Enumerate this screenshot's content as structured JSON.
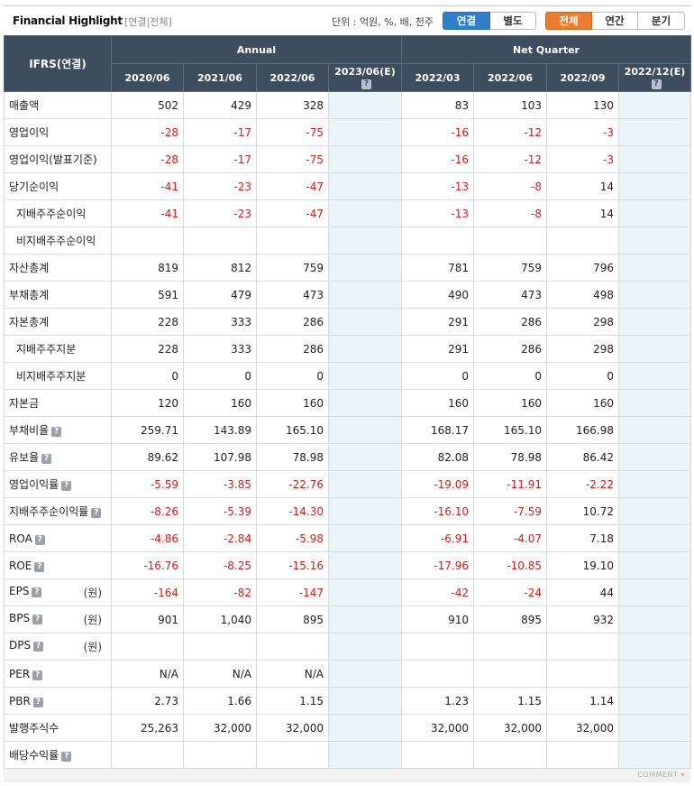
{
  "header": {
    "title": "Financial Highlight",
    "subtitle": "[연결|전체]",
    "unit_text": "단위 : 억원, %, 배, 천주",
    "consolidation_toggle": [
      {
        "label": "연결",
        "active": true
      },
      {
        "label": "별도",
        "active": false
      }
    ],
    "period_toggle": [
      {
        "label": "전체",
        "active": true
      },
      {
        "label": "연간",
        "active": false
      },
      {
        "label": "분기",
        "active": false
      }
    ]
  },
  "table": {
    "corner_label": "IFRS(연결)",
    "group_headers": [
      "Annual",
      "Net Quarter"
    ],
    "columns": [
      "2020/06",
      "2021/06",
      "2022/06",
      "2023/06(E)",
      "2022/03",
      "2022/06",
      "2022/09",
      "2022/12(E)"
    ],
    "rows": [
      {
        "label": "매출액",
        "values": [
          "502",
          "429",
          "328",
          "",
          "83",
          "103",
          "130",
          ""
        ]
      },
      {
        "label": "영업이익",
        "values": [
          "-28",
          "-17",
          "-75",
          "",
          "-16",
          "-12",
          "-3",
          ""
        ]
      },
      {
        "label": "영업이익(발표기준)",
        "values": [
          "-28",
          "-17",
          "-75",
          "",
          "-16",
          "-12",
          "-3",
          ""
        ]
      },
      {
        "label": "당기순이익",
        "values": [
          "-41",
          "-23",
          "-47",
          "",
          "-13",
          "-8",
          "14",
          ""
        ]
      },
      {
        "label": "지배주주순이익",
        "values": [
          "-41",
          "-23",
          "-47",
          "",
          "-13",
          "-8",
          "14",
          ""
        ]
      },
      {
        "label": "비지배주주순이익",
        "values": [
          "",
          "",
          "",
          "",
          "",
          "",
          "",
          ""
        ]
      },
      {
        "label": "자산총계",
        "values": [
          "819",
          "812",
          "759",
          "",
          "781",
          "759",
          "796",
          ""
        ]
      },
      {
        "label": "부채총계",
        "values": [
          "591",
          "479",
          "473",
          "",
          "490",
          "473",
          "498",
          ""
        ]
      },
      {
        "label": "자본총계",
        "values": [
          "228",
          "333",
          "286",
          "",
          "291",
          "286",
          "298",
          ""
        ]
      },
      {
        "label": "지배주주지분",
        "values": [
          "228",
          "333",
          "286",
          "",
          "291",
          "286",
          "298",
          ""
        ]
      },
      {
        "label": "비지배주주지분",
        "values": [
          "0",
          "0",
          "0",
          "",
          "0",
          "0",
          "0",
          ""
        ]
      },
      {
        "label": "자본금",
        "values": [
          "120",
          "160",
          "160",
          "",
          "160",
          "160",
          "160",
          ""
        ]
      },
      {
        "label": "부채비율",
        "values": [
          "259.71",
          "143.89",
          "165.10",
          "",
          "168.17",
          "165.10",
          "166.98",
          ""
        ]
      },
      {
        "label": "유보율",
        "values": [
          "89.62",
          "107.98",
          "78.98",
          "",
          "82.08",
          "78.98",
          "86.42",
          ""
        ]
      },
      {
        "label": "영업이익률",
        "values": [
          "-5.59",
          "-3.85",
          "-22.76",
          "",
          "-19.09",
          "-11.91",
          "-2.22",
          ""
        ]
      },
      {
        "label": "지배주주순이익률",
        "values": [
          "-8.26",
          "-5.39",
          "-14.30",
          "",
          "-16.10",
          "-7.59",
          "10.72",
          ""
        ]
      },
      {
        "label": "ROA",
        "values": [
          "-4.86",
          "-2.84",
          "-5.98",
          "",
          "-6.91",
          "-4.07",
          "7.18",
          ""
        ]
      },
      {
        "label": "ROE",
        "values": [
          "-16.76",
          "-8.25",
          "-15.16",
          "",
          "-17.96",
          "-10.85",
          "19.10",
          ""
        ]
      },
      {
        "label": "EPS",
        "unit": "(원)",
        "values": [
          "-164",
          "-82",
          "-147",
          "",
          "-42",
          "-24",
          "44",
          ""
        ]
      },
      {
        "label": "BPS",
        "unit": "(원)",
        "values": [
          "901",
          "1,040",
          "895",
          "",
          "910",
          "895",
          "932",
          ""
        ]
      },
      {
        "label": "DPS",
        "unit": "(원)",
        "values": [
          "",
          "",
          "",
          "",
          "",
          "",
          "",
          ""
        ]
      },
      {
        "label": "PER",
        "values": [
          "N/A",
          "N/A",
          "N/A",
          "",
          "",
          "",
          "",
          ""
        ]
      },
      {
        "label": "PBR",
        "values": [
          "2.73",
          "1.66",
          "1.15",
          "",
          "1.23",
          "1.15",
          "1.14",
          ""
        ]
      },
      {
        "label": "발행주식수",
        "values": [
          "25,263",
          "32,000",
          "32,000",
          "",
          "32,000",
          "32,000",
          "32,000",
          ""
        ]
      },
      {
        "label": "배당수익률",
        "values": [
          "",
          "",
          "",
          "",
          "",
          "",
          "",
          ""
        ]
      }
    ]
  },
  "footer": {
    "comment_label": "COMMENT"
  },
  "colors": {
    "header_bg": "#3e4d5e",
    "negative": "#d0201a",
    "estimate_bg": "#eaf4f8",
    "consolidation_active": "#2f80c9",
    "period_active": "#ee7c2f"
  }
}
